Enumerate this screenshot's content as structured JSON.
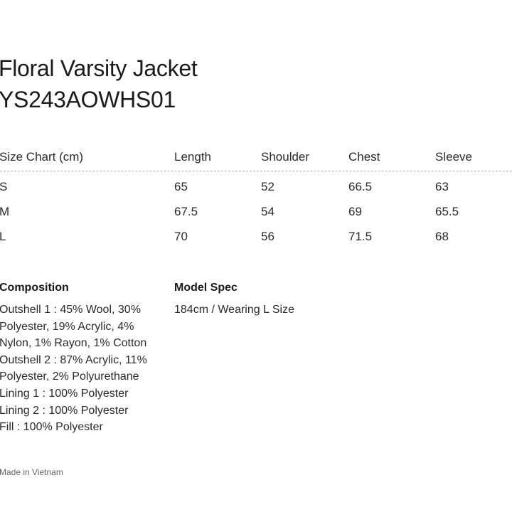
{
  "header": {
    "title": "Floral Varsity Jacket",
    "code": "YS243AOWHS01"
  },
  "table": {
    "header": [
      "Size Chart (cm)",
      "Length",
      "Shoulder",
      "Chest",
      "Sleeve"
    ],
    "rows": [
      [
        "S",
        65,
        52,
        66.5,
        63
      ],
      [
        "M",
        67.5,
        54,
        69,
        65.5
      ],
      [
        "L",
        70,
        56,
        71.5,
        68
      ]
    ]
  },
  "composition": {
    "heading": "Composition",
    "lines": [
      "Outshell 1 : 45% Wool, 30%",
      "Polyester, 19% Acrylic, 4%",
      "Nylon, 1% Rayon, 1% Cotton",
      "Outshell 2 : 87% Acrylic, 11%",
      "Polyester, 2% Polyurethane",
      "Lining 1 : 100% Polyester",
      "Lining 2 : 100% Polyester",
      "Fill : 100% Polyester"
    ]
  },
  "model_spec": {
    "heading": "Model Spec",
    "text": "184cm / Wearing L Size"
  },
  "origin": "Made in Vietnam"
}
